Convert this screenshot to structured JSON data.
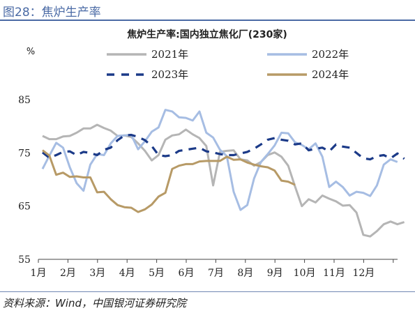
{
  "header": {
    "title": "图28：焦炉生产率"
  },
  "footer": {
    "source": "资料来源：Wind，中国银河证券研究院"
  },
  "colors": {
    "header": "#4a6aa5",
    "s2021": "#b5b5b5",
    "s2022": "#a6bde3",
    "s2023": "#1b3a88",
    "s2024": "#b79a66"
  },
  "chart_data": {
    "type": "line",
    "title": "焦炉生产率:国内独立焦化厂(230家)",
    "unit_label": "%",
    "ylim": [
      55,
      90
    ],
    "yticks": [
      55,
      65,
      75,
      85
    ],
    "xlim": [
      1,
      13
    ],
    "month_labels": [
      "1月",
      "2月",
      "3月",
      "4月",
      "5月",
      "6月",
      "7月",
      "8月",
      "9月",
      "10月",
      "11月",
      "12月"
    ],
    "grid": false,
    "legend_position": "top",
    "series": [
      {
        "name": "2021年",
        "style": "solid",
        "color": "#b5b5b5",
        "values": [
          78.2,
          77.6,
          77.6,
          78.1,
          78.2,
          78.8,
          79.6,
          79.6,
          80.3,
          79.7,
          79.2,
          78.2,
          78.3,
          78.0,
          76.8,
          75.4,
          73.6,
          74.6,
          77.5,
          78.3,
          78.5,
          79.4,
          78.5,
          77.8,
          76.3,
          68.9,
          75.2,
          75.4,
          75.5,
          73.8,
          73.6,
          72.6,
          73.3,
          74.6,
          75.1,
          74.3,
          72.6,
          68.7,
          65.0,
          66.3,
          65.7,
          67.0,
          66.4,
          65.9,
          65.1,
          65.2,
          63.8,
          59.6,
          59.3,
          60.3,
          61.6,
          62.1,
          61.6,
          62.0
        ]
      },
      {
        "name": "2022年",
        "style": "solid",
        "color": "#a6bde3",
        "values": [
          72.0,
          74.5,
          76.9,
          76.0,
          72.3,
          69.3,
          67.9,
          72.8,
          74.8,
          74.6,
          76.8,
          78.2,
          78.3,
          78.4,
          75.7,
          77.2,
          79.0,
          79.8,
          83.1,
          82.8,
          81.7,
          81.6,
          81.1,
          82.8,
          78.8,
          77.9,
          75.6,
          74.4,
          67.7,
          64.3,
          65.2,
          70.2,
          73.3,
          74.8,
          76.4,
          78.8,
          78.7,
          77.0,
          76.5,
          75.7,
          76.8,
          74.3,
          68.6,
          69.6,
          68.6,
          67.0,
          67.7,
          67.5,
          66.9,
          68.9,
          72.8,
          73.8,
          73.3
        ]
      },
      {
        "name": "2023年",
        "style": "dashed",
        "color": "#1b3a88",
        "values": [
          75.1,
          74.1,
          74.6,
          75.2,
          75.3,
          74.6,
          75.2,
          75.0,
          74.6,
          75.6,
          76.0,
          77.4,
          78.3,
          78.4,
          78.0,
          77.4,
          76.3,
          74.6,
          74.4,
          74.6,
          75.4,
          75.6,
          75.8,
          76.0,
          75.3,
          75.1,
          74.8,
          74.6,
          74.6,
          74.9,
          75.2,
          75.8,
          76.6,
          77.5,
          77.8,
          77.5,
          77.3,
          76.6,
          76.8,
          75.5,
          75.8,
          76.0,
          75.3,
          76.6,
          76.2,
          76.0,
          75.0,
          74.0,
          73.8,
          74.4,
          74.6,
          74.0,
          74.9,
          73.9
        ]
      },
      {
        "name": "2024年",
        "style": "solid",
        "color": "#b79a66",
        "values": [
          75.5,
          74.5,
          70.9,
          71.3,
          70.5,
          70.6,
          70.4,
          70.4,
          67.6,
          67.7,
          66.3,
          65.2,
          64.8,
          64.7,
          63.9,
          64.4,
          65.3,
          66.8,
          67.5,
          72.0,
          72.6,
          72.9,
          72.9,
          73.4,
          73.5,
          73.5,
          73.5,
          74.3,
          73.7,
          73.8,
          73.2,
          72.8,
          72.5,
          72.3,
          71.7,
          69.8,
          69.6,
          69.0
        ]
      }
    ]
  }
}
